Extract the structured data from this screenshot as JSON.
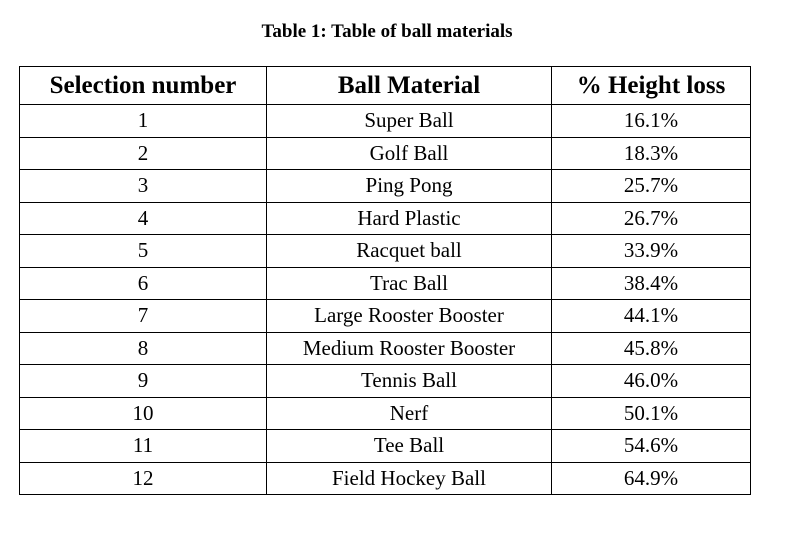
{
  "caption": "Table 1: Table of ball materials",
  "table": {
    "headers": [
      "Selection number",
      "Ball Material",
      "% Height loss"
    ],
    "rows": [
      [
        "1",
        "Super Ball",
        "16.1%"
      ],
      [
        "2",
        "Golf Ball",
        "18.3%"
      ],
      [
        "3",
        "Ping Pong",
        "25.7%"
      ],
      [
        "4",
        "Hard Plastic",
        "26.7%"
      ],
      [
        "5",
        "Racquet ball",
        "33.9%"
      ],
      [
        "6",
        "Trac Ball",
        "38.4%"
      ],
      [
        "7",
        "Large Rooster Booster",
        "44.1%"
      ],
      [
        "8",
        "Medium Rooster Booster",
        "45.8%"
      ],
      [
        "9",
        "Tennis Ball",
        "46.0%"
      ],
      [
        "10",
        "Nerf",
        "50.1%"
      ],
      [
        "11",
        "Tee Ball",
        "54.6%"
      ],
      [
        "12",
        "Field Hockey Ball",
        "64.9%"
      ]
    ]
  }
}
